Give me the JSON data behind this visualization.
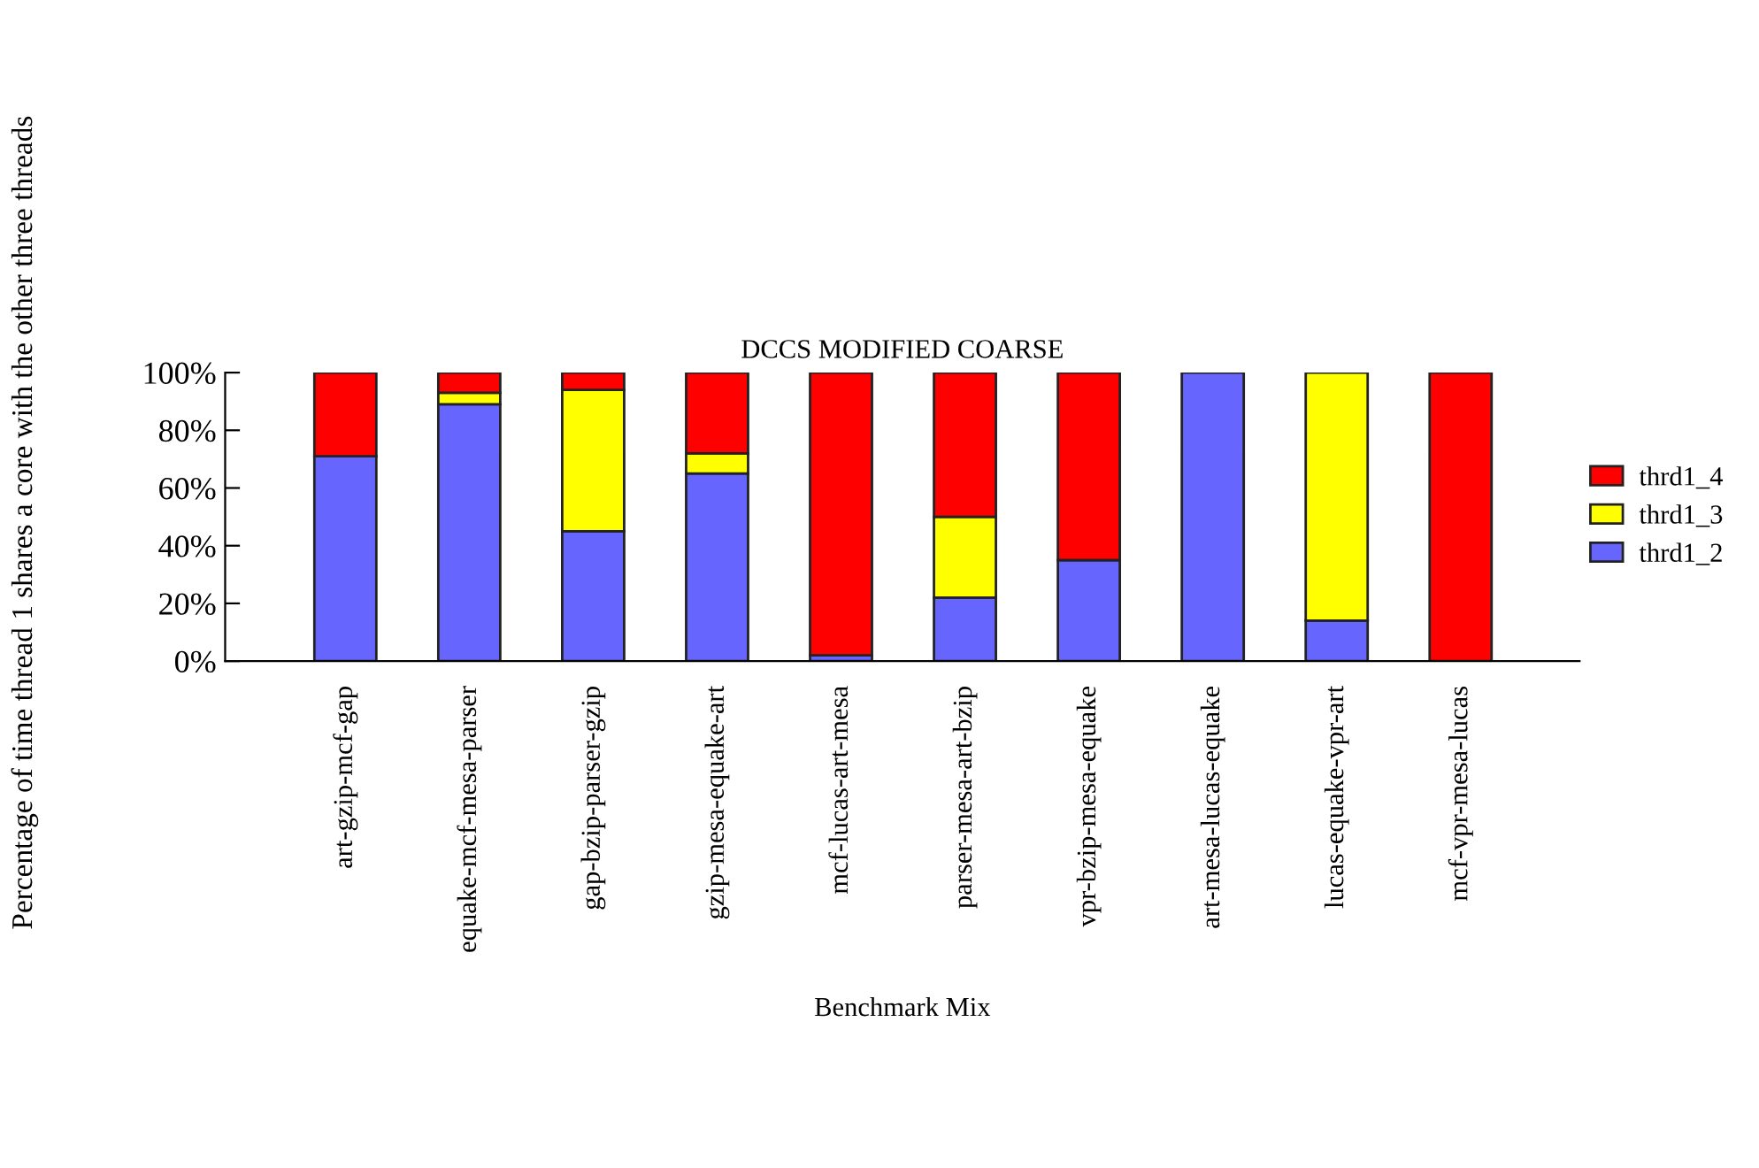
{
  "chart_data": {
    "type": "bar",
    "stacked": true,
    "title": "DCCS MODIFIED COARSE",
    "xlabel": "Benchmark Mix",
    "ylabel": "Percentage of time thread 1 shares a core with the other three threads",
    "categories": [
      "art-gzip-mcf-gap",
      "equake-mcf-mesa-parser",
      "gap-bzip-parser-gzip",
      "gzip-mesa-equake-art",
      "mcf-lucas-art-mesa",
      "parser-mesa-art-bzip",
      "vpr-bzip-mesa-equake",
      "art-mesa-lucas-equake",
      "lucas-equake-vpr-art",
      "mcf-vpr-mesa-lucas"
    ],
    "series": [
      {
        "name": "thrd1_2",
        "color": "#6666ff",
        "values": [
          71,
          89,
          45,
          65,
          2,
          22,
          35,
          100,
          14,
          null
        ]
      },
      {
        "name": "thrd1_3",
        "color": "#ffff00",
        "values": [
          0,
          4,
          49,
          7,
          0,
          28,
          0,
          0,
          86,
          0
        ]
      },
      {
        "name": "thrd1_4",
        "color": "#ff0000",
        "values": [
          29,
          7,
          6,
          28,
          98,
          50,
          65,
          0,
          0,
          100
        ]
      }
    ],
    "ylim": [
      0,
      100
    ],
    "yticks": [
      {
        "value": 0,
        "label": "0%"
      },
      {
        "value": 20,
        "label": "20%"
      },
      {
        "value": 40,
        "label": "40%"
      },
      {
        "value": 60,
        "label": "60%"
      },
      {
        "value": 80,
        "label": "80%"
      },
      {
        "value": 100,
        "label": "100%"
      }
    ],
    "grid": false,
    "legend": "right"
  }
}
